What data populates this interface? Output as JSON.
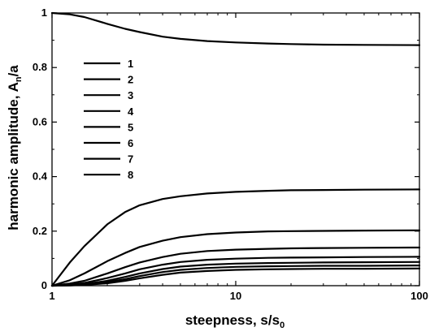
{
  "chart_data": {
    "type": "line",
    "xlabel": "steepness, s/s",
    "xlabel_sub": "0",
    "ylabel": "harmonic amplitude, A",
    "ylabel_sub": "n",
    "ylabel_suffix": "/a",
    "xscale": "log",
    "xlim": [
      1,
      100
    ],
    "ylim": [
      0,
      1
    ],
    "x_ticks": [
      {
        "value": 1,
        "label": "1"
      },
      {
        "value": 10,
        "label": "10"
      },
      {
        "value": 100,
        "label": "100"
      }
    ],
    "y_ticks": [
      {
        "value": 0,
        "label": "0"
      },
      {
        "value": 0.2,
        "label": "0.2"
      },
      {
        "value": 0.4,
        "label": "0.4"
      },
      {
        "value": 0.6,
        "label": "0.6"
      },
      {
        "value": 0.8,
        "label": "0.8"
      },
      {
        "value": 1,
        "label": "1"
      }
    ],
    "grid": false,
    "legend_position": "upper-left",
    "line_color": "#000000",
    "x": [
      1,
      1.25,
      1.5,
      2,
      2.5,
      3,
      4,
      5,
      7,
      10,
      15,
      20,
      30,
      50,
      100
    ],
    "series": [
      {
        "name": "1",
        "values": [
          1.0,
          0.995,
          0.985,
          0.96,
          0.942,
          0.93,
          0.913,
          0.905,
          0.897,
          0.892,
          0.888,
          0.886,
          0.884,
          0.883,
          0.882
        ]
      },
      {
        "name": "2",
        "values": [
          0.0,
          0.085,
          0.145,
          0.225,
          0.27,
          0.295,
          0.318,
          0.328,
          0.338,
          0.344,
          0.348,
          0.35,
          0.351,
          0.352,
          0.353
        ]
      },
      {
        "name": "3",
        "values": [
          0.0,
          0.02,
          0.045,
          0.09,
          0.12,
          0.142,
          0.165,
          0.178,
          0.189,
          0.195,
          0.199,
          0.2,
          0.201,
          0.202,
          0.203
        ]
      },
      {
        "name": "4",
        "values": [
          0.0,
          0.008,
          0.018,
          0.045,
          0.068,
          0.085,
          0.105,
          0.117,
          0.127,
          0.132,
          0.135,
          0.137,
          0.138,
          0.139,
          0.14
        ]
      },
      {
        "name": "5",
        "values": [
          0.0,
          0.004,
          0.01,
          0.028,
          0.045,
          0.06,
          0.077,
          0.087,
          0.095,
          0.099,
          0.102,
          0.103,
          0.104,
          0.105,
          0.106
        ]
      },
      {
        "name": "6",
        "values": [
          0.0,
          0.002,
          0.006,
          0.018,
          0.032,
          0.045,
          0.061,
          0.07,
          0.077,
          0.081,
          0.083,
          0.084,
          0.085,
          0.086,
          0.087
        ]
      },
      {
        "name": "7",
        "values": [
          0.0,
          0.001,
          0.004,
          0.013,
          0.024,
          0.035,
          0.05,
          0.058,
          0.065,
          0.069,
          0.071,
          0.072,
          0.073,
          0.073,
          0.074
        ]
      },
      {
        "name": "8",
        "values": [
          0.0,
          0.001,
          0.003,
          0.009,
          0.018,
          0.027,
          0.04,
          0.048,
          0.054,
          0.058,
          0.06,
          0.061,
          0.062,
          0.062,
          0.063
        ]
      }
    ]
  }
}
